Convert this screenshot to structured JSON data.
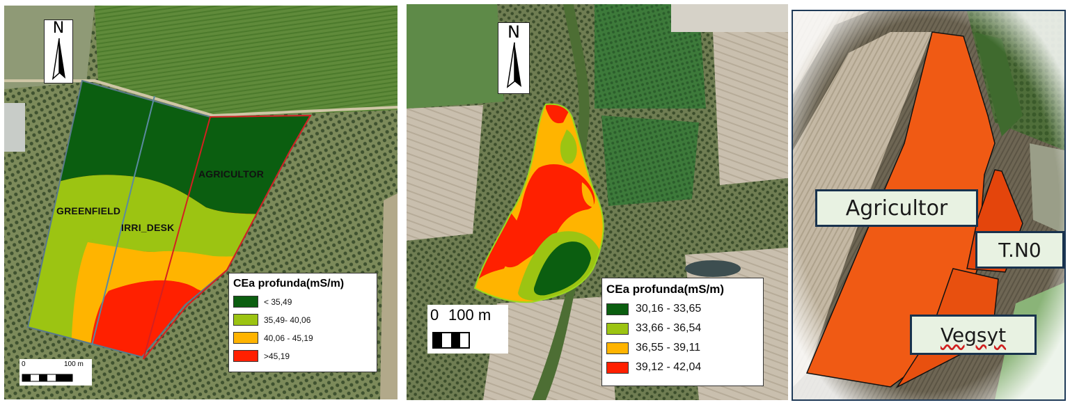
{
  "panel1": {
    "north": "N",
    "fields": [
      "GREENFIELD",
      "IRRI_DESK",
      "AGRICULTOR"
    ],
    "legend": {
      "title": "CEa profunda(mS/m)",
      "classes": [
        {
          "label": "< 35,49",
          "color": "#0b5e10"
        },
        {
          "label": "35,49- 40,06",
          "color": "#9cc412"
        },
        {
          "label": "40,06 - 45,19",
          "color": "#ffb400"
        },
        {
          "label": ">45,19",
          "color": "#ff2000"
        }
      ]
    },
    "scale": {
      "zero": "0",
      "distance": "100 m"
    }
  },
  "panel2": {
    "north": "N",
    "legend": {
      "title": "CEa profunda(mS/m)",
      "classes": [
        {
          "label": "30,16 - 33,65",
          "color": "#0b5e10"
        },
        {
          "label": "33,66 - 36,54",
          "color": "#9cc412"
        },
        {
          "label": "36,55 - 39,11",
          "color": "#ffb400"
        },
        {
          "label": "39,12 - 42,04",
          "color": "#ff2000"
        }
      ]
    },
    "scale": {
      "zero": "0",
      "distance": "100 m"
    }
  },
  "panel3": {
    "labels": {
      "agricultor": "Agricultor",
      "tn0": "T.N0",
      "vegsyt": "Vegsyt"
    },
    "field_color": "#f05a14"
  }
}
